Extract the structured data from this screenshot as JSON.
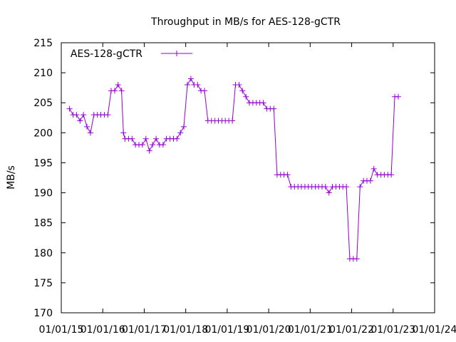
{
  "chart_data": {
    "type": "line",
    "title": "Throughput in MB/s for AES-128-gCTR",
    "xlabel": "",
    "ylabel": "MB/s",
    "xlim": [
      "2015-01-01",
      "2024-01-01"
    ],
    "ylim": [
      170,
      215
    ],
    "yticks": [
      170,
      175,
      180,
      185,
      190,
      195,
      200,
      205,
      210,
      215
    ],
    "xtick_labels": [
      "01/01/15",
      "01/01/16",
      "01/01/17",
      "01/01/18",
      "01/01/19",
      "01/01/20",
      "01/01/21",
      "01/01/22",
      "01/01/23",
      "01/01/24"
    ],
    "grid": false,
    "legend_position": "top-left",
    "series": [
      {
        "name": "AES-128-gCTR",
        "color": "#9400d3",
        "x": [
          "2015-03-15",
          "2015-04-15",
          "2015-05-15",
          "2015-06-15",
          "2015-07-15",
          "2015-08-15",
          "2015-09-15",
          "2015-10-15",
          "2015-11-15",
          "2015-12-15",
          "2016-01-15",
          "2016-02-15",
          "2016-03-15",
          "2016-04-15",
          "2016-05-15",
          "2016-06-15",
          "2016-07-01",
          "2016-07-15",
          "2016-08-15",
          "2016-09-15",
          "2016-10-15",
          "2016-11-15",
          "2016-12-15",
          "2017-01-15",
          "2017-02-15",
          "2017-03-15",
          "2017-04-15",
          "2017-05-15",
          "2017-06-15",
          "2017-07-15",
          "2017-08-15",
          "2017-09-15",
          "2017-10-15",
          "2017-11-15",
          "2017-12-15",
          "2018-01-15",
          "2018-02-15",
          "2018-03-15",
          "2018-04-15",
          "2018-05-15",
          "2018-06-15",
          "2018-07-15",
          "2018-08-15",
          "2018-09-15",
          "2018-10-15",
          "2018-11-15",
          "2018-12-15",
          "2019-01-15",
          "2019-02-15",
          "2019-03-15",
          "2019-04-15",
          "2019-05-15",
          "2019-06-15",
          "2019-07-15",
          "2019-08-15",
          "2019-09-15",
          "2019-10-15",
          "2019-11-15",
          "2019-12-15",
          "2020-01-15",
          "2020-02-15",
          "2020-03-15",
          "2020-04-15",
          "2020-05-15",
          "2020-06-15",
          "2020-07-15",
          "2020-08-15",
          "2020-09-15",
          "2020-10-15",
          "2020-11-15",
          "2020-12-15",
          "2021-01-15",
          "2021-02-15",
          "2021-03-15",
          "2021-04-15",
          "2021-05-15",
          "2021-06-15",
          "2021-07-15",
          "2021-08-15",
          "2021-09-15",
          "2021-10-15",
          "2021-11-15",
          "2021-12-15",
          "2022-01-15",
          "2022-02-15",
          "2022-03-15",
          "2022-04-15",
          "2022-05-15",
          "2022-06-15",
          "2022-07-15",
          "2022-08-15",
          "2022-09-15",
          "2022-10-15",
          "2022-11-15",
          "2022-12-15",
          "2023-01-15",
          "2023-02-15"
        ],
        "y": [
          204,
          203,
          203,
          202,
          203,
          201,
          200,
          203,
          203,
          203,
          203,
          203,
          207,
          207,
          208,
          207,
          200,
          199,
          199,
          199,
          198,
          198,
          198,
          199,
          197,
          198,
          199,
          198,
          198,
          199,
          199,
          199,
          199,
          200,
          201,
          208,
          209,
          208,
          208,
          207,
          207,
          202,
          202,
          202,
          202,
          202,
          202,
          202,
          202,
          208,
          208,
          207,
          206,
          205,
          205,
          205,
          205,
          205,
          204,
          204,
          204,
          193,
          193,
          193,
          193,
          191,
          191,
          191,
          191,
          191,
          191,
          191,
          191,
          191,
          191,
          191,
          190,
          191,
          191,
          191,
          191,
          191,
          179,
          179,
          179,
          191,
          192,
          192,
          192,
          194,
          193,
          193,
          193,
          193,
          193,
          206,
          206
        ]
      }
    ],
    "visible_x_end": "2023-02-15"
  }
}
